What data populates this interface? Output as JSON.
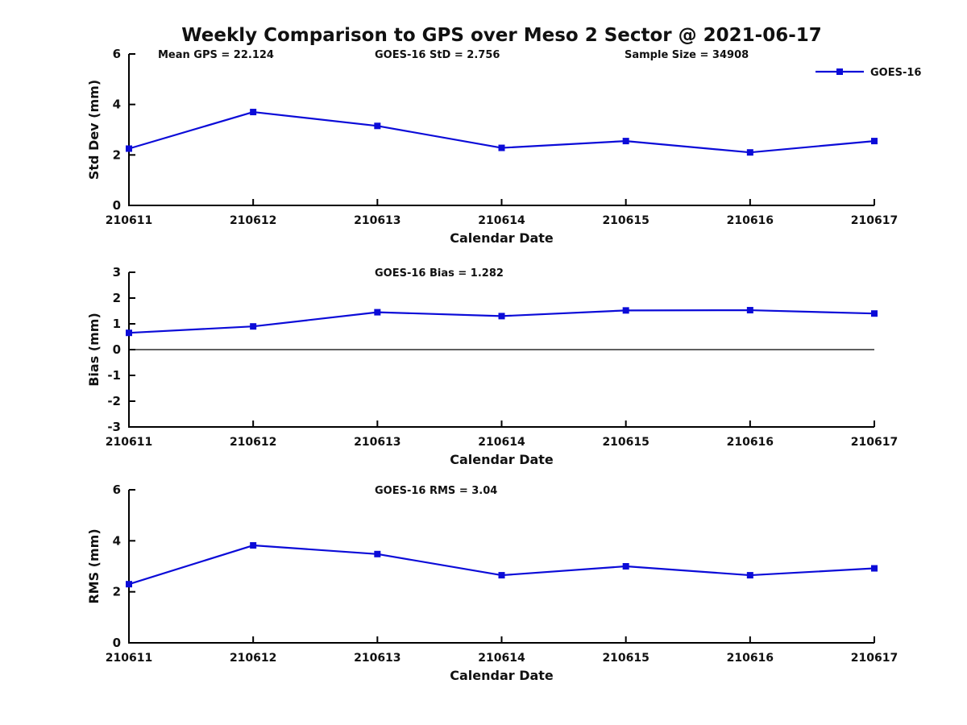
{
  "title": "Weekly Comparison to GPS over Meso 2 Sector @ 2021-06-17",
  "legend": {
    "label": "GOES-16"
  },
  "colors": {
    "line": "#0b0bd8",
    "axis": "#000000",
    "text": "#111111",
    "zero_line": "#000000",
    "background": "#ffffff"
  },
  "chart_data": [
    {
      "type": "line",
      "x": [
        "210611",
        "210612",
        "210613",
        "210614",
        "210615",
        "210616",
        "210617"
      ],
      "series": [
        {
          "name": "GOES-16",
          "values": [
            2.25,
            3.7,
            3.15,
            2.28,
            2.55,
            2.1,
            2.55
          ]
        }
      ],
      "xlabel": "Calendar Date",
      "ylabel": "Std Dev (mm)",
      "ylim": [
        0,
        6
      ],
      "yticks": [
        0,
        2,
        4,
        6
      ],
      "annotations": [
        "Mean GPS = 22.124",
        "GOES-16 StD = 2.756",
        "Sample Size = 34908"
      ],
      "legend_position": "top-right",
      "grid": false,
      "zero_line": false
    },
    {
      "type": "line",
      "x": [
        "210611",
        "210612",
        "210613",
        "210614",
        "210615",
        "210616",
        "210617"
      ],
      "series": [
        {
          "name": "GOES-16",
          "values": [
            0.65,
            0.9,
            1.45,
            1.3,
            1.52,
            1.53,
            1.4
          ]
        }
      ],
      "xlabel": "Calendar Date",
      "ylabel": "Bias (mm)",
      "ylim": [
        -3,
        3
      ],
      "yticks": [
        -3,
        -2,
        -1,
        0,
        1,
        2,
        3
      ],
      "annotations": [
        "GOES-16 Bias  = 1.282"
      ],
      "legend_position": "none",
      "grid": false,
      "zero_line": true
    },
    {
      "type": "line",
      "x": [
        "210611",
        "210612",
        "210613",
        "210614",
        "210615",
        "210616",
        "210617"
      ],
      "series": [
        {
          "name": "GOES-16",
          "values": [
            2.3,
            3.82,
            3.48,
            2.65,
            3.0,
            2.65,
            2.92
          ]
        }
      ],
      "xlabel": "Calendar Date",
      "ylabel": "RMS (mm)",
      "ylim": [
        0,
        6
      ],
      "yticks": [
        0,
        2,
        4,
        6
      ],
      "annotations": [
        "GOES-16 RMS = 3.04"
      ],
      "legend_position": "none",
      "grid": false,
      "zero_line": false
    }
  ]
}
